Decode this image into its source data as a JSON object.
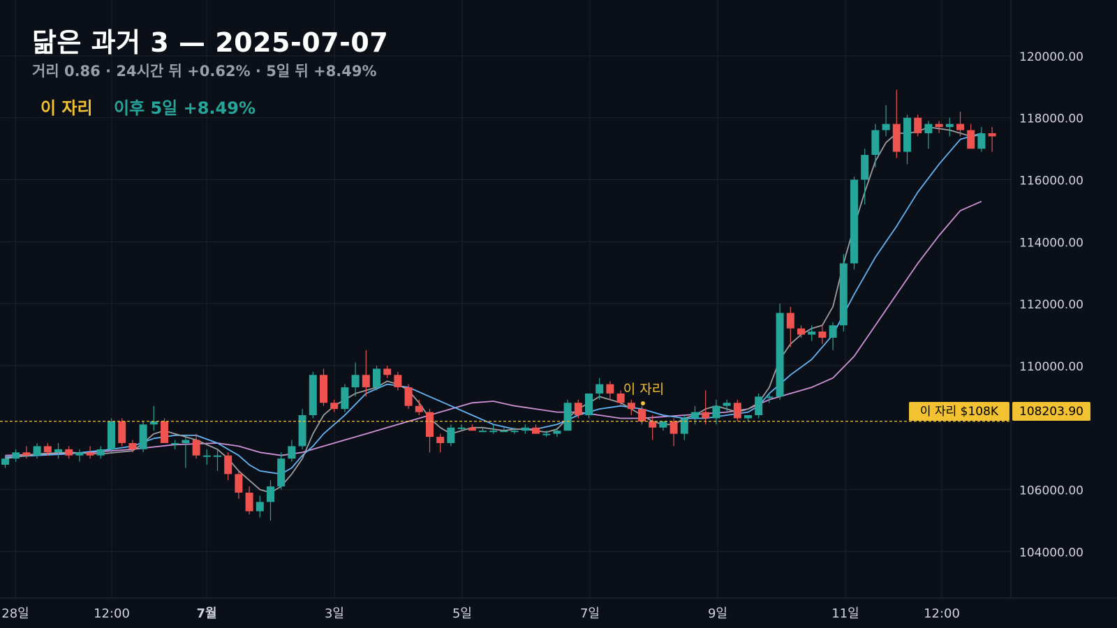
{
  "header": {
    "title": "닮은 과거 3 — 2025-07-07",
    "subtitle": "거리 0.86 · 24시간 뒤 +0.62% · 5일 뒤 +8.49%"
  },
  "legend": {
    "marker_label": "이 자리",
    "after_label": "이후 5일 +8.49%"
  },
  "chart_data": {
    "type": "candlestick",
    "y_axis": {
      "ticks": [
        "120000.00",
        "118000.00",
        "116000.00",
        "114000.00",
        "112000.00",
        "110000.00",
        "106000.00",
        "104000.00"
      ],
      "tick_values": [
        120000,
        118000,
        116000,
        114000,
        112000,
        110000,
        106000,
        104000
      ],
      "range": [
        102500,
        121800
      ]
    },
    "x_axis": {
      "ticks": [
        {
          "label": "28일",
          "bold": false
        },
        {
          "label": "12:00",
          "bold": false
        },
        {
          "label": "7월",
          "bold": true
        },
        {
          "label": "3일",
          "bold": false
        },
        {
          "label": "5일",
          "bold": false
        },
        {
          "label": "7일",
          "bold": false
        },
        {
          "label": "9일",
          "bold": false
        },
        {
          "label": "11일",
          "bold": false
        },
        {
          "label": "12:00",
          "bold": false
        }
      ]
    },
    "grid": true,
    "colors": {
      "up": "#26a69a",
      "down": "#ef5350",
      "ma_fast": "#9e9e9e",
      "ma_mid": "#64b5f6",
      "ma_slow": "#ce93d8",
      "marker": "#f2c232",
      "background": "#0b0f17"
    },
    "marker": {
      "label": "이 자리",
      "price": 108203.9,
      "price_label": "108203.90",
      "tag": "이 자리 $108K"
    },
    "candles": [
      [
        106800,
        107100,
        106700,
        107000
      ],
      [
        107000,
        107300,
        106900,
        107200
      ],
      [
        107200,
        107400,
        107000,
        107100
      ],
      [
        107100,
        107500,
        107000,
        107400
      ],
      [
        107400,
        107500,
        107100,
        107200
      ],
      [
        107200,
        107500,
        107000,
        107300
      ],
      [
        107300,
        107400,
        107000,
        107100
      ],
      [
        107100,
        107300,
        106900,
        107200
      ],
      [
        107200,
        107400,
        107000,
        107100
      ],
      [
        107100,
        107400,
        107000,
        107300
      ],
      [
        107300,
        108300,
        107200,
        108200
      ],
      [
        108200,
        108300,
        107400,
        107500
      ],
      [
        107500,
        107600,
        107200,
        107300
      ],
      [
        107300,
        108200,
        107200,
        108100
      ],
      [
        108100,
        108700,
        107900,
        108200
      ],
      [
        108200,
        108300,
        107500,
        107500
      ],
      [
        107500,
        107600,
        107300,
        107500
      ],
      [
        107500,
        107700,
        106700,
        107600
      ],
      [
        107600,
        107800,
        107000,
        107100
      ],
      [
        107100,
        107300,
        106800,
        107100
      ],
      [
        107100,
        107300,
        106600,
        107100
      ],
      [
        107100,
        107200,
        106300,
        106500
      ],
      [
        106500,
        106600,
        105700,
        105900
      ],
      [
        105900,
        106100,
        105200,
        105300
      ],
      [
        105300,
        105800,
        105100,
        105600
      ],
      [
        105600,
        106300,
        105000,
        106100
      ],
      [
        106100,
        107200,
        106000,
        107000
      ],
      [
        107000,
        107600,
        106900,
        107400
      ],
      [
        107400,
        108600,
        107300,
        108400
      ],
      [
        108400,
        109800,
        108300,
        109700
      ],
      [
        109700,
        109900,
        108700,
        108800
      ],
      [
        108800,
        108900,
        108500,
        108600
      ],
      [
        108600,
        109400,
        108500,
        109300
      ],
      [
        109300,
        110100,
        109000,
        109700
      ],
      [
        109700,
        110500,
        109000,
        109300
      ],
      [
        109300,
        110000,
        109200,
        109900
      ],
      [
        109900,
        110000,
        109600,
        109700
      ],
      [
        109700,
        109800,
        109200,
        109300
      ],
      [
        109300,
        109400,
        108600,
        108700
      ],
      [
        108700,
        108900,
        108400,
        108500
      ],
      [
        108500,
        108600,
        107200,
        107700
      ],
      [
        107700,
        107800,
        107200,
        107500
      ],
      [
        107500,
        108100,
        107400,
        108000
      ],
      [
        108000,
        108100,
        107900,
        108000
      ],
      [
        108000,
        108100,
        107900,
        107900
      ],
      [
        107900,
        108000,
        107900,
        107900
      ],
      [
        107900,
        108100,
        107800,
        107900
      ],
      [
        107900,
        108000,
        107900,
        107900
      ],
      [
        107900,
        108000,
        107800,
        107900
      ],
      [
        107900,
        108100,
        107800,
        108000
      ],
      [
        108000,
        108100,
        107800,
        107800
      ],
      [
        107800,
        107900,
        107700,
        107800
      ],
      [
        107800,
        108000,
        107700,
        107900
      ],
      [
        107900,
        108900,
        107900,
        108800
      ],
      [
        108800,
        108900,
        108300,
        108400
      ],
      [
        108400,
        109100,
        108300,
        109100
      ],
      [
        109100,
        109600,
        108900,
        109400
      ],
      [
        109400,
        109500,
        108900,
        109100
      ],
      [
        109100,
        109200,
        108700,
        108800
      ],
      [
        108800,
        108900,
        108400,
        108600
      ],
      [
        108600,
        108700,
        108100,
        108200
      ],
      [
        108200,
        108400,
        107600,
        108000
      ],
      [
        108000,
        108200,
        107900,
        108200
      ],
      [
        108200,
        108300,
        107400,
        107800
      ],
      [
        107800,
        108400,
        107600,
        108300
      ],
      [
        108300,
        108700,
        108100,
        108500
      ],
      [
        108500,
        109200,
        108100,
        108300
      ],
      [
        108300,
        108900,
        108100,
        108700
      ],
      [
        108700,
        108900,
        108500,
        108800
      ],
      [
        108800,
        108900,
        108200,
        108300
      ],
      [
        108300,
        108400,
        108200,
        108400
      ],
      [
        108400,
        109100,
        108300,
        109000
      ],
      [
        109000,
        109100,
        108800,
        109000
      ],
      [
        109000,
        112000,
        108900,
        111700
      ],
      [
        111700,
        111900,
        110600,
        111200
      ],
      [
        111200,
        111300,
        110900,
        111000
      ],
      [
        111000,
        111300,
        110800,
        111100
      ],
      [
        111100,
        111300,
        110700,
        110900
      ],
      [
        110900,
        111400,
        110500,
        111300
      ],
      [
        111300,
        113600,
        111100,
        113300
      ],
      [
        113300,
        116100,
        113100,
        116000
      ],
      [
        116000,
        117000,
        115200,
        116800
      ],
      [
        116800,
        117800,
        116400,
        117600
      ],
      [
        117600,
        118400,
        117400,
        117800
      ],
      [
        117800,
        118900,
        116700,
        116900
      ],
      [
        116900,
        118100,
        116500,
        118000
      ],
      [
        118000,
        118100,
        117400,
        117500
      ],
      [
        117500,
        117900,
        117000,
        117800
      ],
      [
        117800,
        117900,
        117500,
        117700
      ],
      [
        117700,
        118000,
        117400,
        117800
      ],
      [
        117800,
        118200,
        117400,
        117600
      ],
      [
        117600,
        117800,
        117000,
        117000
      ],
      [
        117000,
        117700,
        116900,
        117500
      ],
      [
        117500,
        117700,
        116900,
        117400
      ]
    ],
    "ma_fast": [
      [
        0,
        107000
      ],
      [
        3,
        107150
      ],
      [
        6,
        107200
      ],
      [
        9,
        107150
      ],
      [
        12,
        107250
      ],
      [
        13,
        107500
      ],
      [
        14,
        107800
      ],
      [
        15,
        107900
      ],
      [
        16,
        107800
      ],
      [
        18,
        107600
      ],
      [
        20,
        107300
      ],
      [
        21,
        107000
      ],
      [
        22,
        106600
      ],
      [
        23,
        106300
      ],
      [
        24,
        106000
      ],
      [
        25,
        105900
      ],
      [
        26,
        106100
      ],
      [
        27,
        106500
      ],
      [
        28,
        107000
      ],
      [
        29,
        107800
      ],
      [
        30,
        108400
      ],
      [
        31,
        108700
      ],
      [
        32,
        108900
      ],
      [
        33,
        109100
      ],
      [
        34,
        109200
      ],
      [
        35,
        109300
      ],
      [
        36,
        109500
      ],
      [
        37,
        109400
      ],
      [
        38,
        109200
      ],
      [
        39,
        108800
      ],
      [
        40,
        108300
      ],
      [
        41,
        108000
      ],
      [
        42,
        107800
      ],
      [
        43,
        107900
      ],
      [
        44,
        108000
      ],
      [
        45,
        108000
      ],
      [
        46,
        107950
      ],
      [
        47,
        107900
      ],
      [
        48,
        107950
      ],
      [
        49,
        107950
      ],
      [
        50,
        107900
      ],
      [
        51,
        107850
      ],
      [
        52,
        107950
      ],
      [
        53,
        108300
      ],
      [
        54,
        108600
      ],
      [
        55,
        108800
      ],
      [
        56,
        109000
      ],
      [
        57,
        108900
      ],
      [
        58,
        108800
      ],
      [
        59,
        108600
      ],
      [
        60,
        108400
      ],
      [
        61,
        108200
      ],
      [
        62,
        108100
      ],
      [
        63,
        108100
      ],
      [
        64,
        108300
      ],
      [
        65,
        108400
      ],
      [
        66,
        108600
      ],
      [
        67,
        108700
      ],
      [
        68,
        108600
      ],
      [
        69,
        108500
      ],
      [
        70,
        108600
      ],
      [
        71,
        108800
      ],
      [
        72,
        109300
      ],
      [
        73,
        110200
      ],
      [
        74,
        110700
      ],
      [
        75,
        111000
      ],
      [
        76,
        111200
      ],
      [
        77,
        111300
      ],
      [
        78,
        111900
      ],
      [
        79,
        113300
      ],
      [
        80,
        114500
      ],
      [
        81,
        115600
      ],
      [
        82,
        116600
      ],
      [
        83,
        117200
      ],
      [
        84,
        117500
      ],
      [
        85,
        117500
      ],
      [
        86,
        117550
      ],
      [
        87,
        117700
      ],
      [
        88,
        117650
      ],
      [
        89,
        117600
      ],
      [
        90,
        117500
      ],
      [
        91,
        117400
      ],
      [
        92,
        117450
      ]
    ],
    "ma_mid": [
      [
        0,
        107050
      ],
      [
        6,
        107150
      ],
      [
        10,
        107300
      ],
      [
        12,
        107400
      ],
      [
        14,
        107650
      ],
      [
        16,
        107750
      ],
      [
        18,
        107750
      ],
      [
        20,
        107500
      ],
      [
        21,
        107300
      ],
      [
        22,
        107100
      ],
      [
        23,
        106800
      ],
      [
        24,
        106600
      ],
      [
        26,
        106500
      ],
      [
        27,
        106700
      ],
      [
        28,
        107100
      ],
      [
        29,
        107400
      ],
      [
        30,
        107800
      ],
      [
        32,
        108400
      ],
      [
        34,
        109100
      ],
      [
        36,
        109400
      ],
      [
        38,
        109300
      ],
      [
        40,
        109000
      ],
      [
        42,
        108700
      ],
      [
        44,
        108400
      ],
      [
        46,
        108100
      ],
      [
        48,
        107950
      ],
      [
        50,
        107950
      ],
      [
        52,
        108100
      ],
      [
        54,
        108400
      ],
      [
        56,
        108600
      ],
      [
        58,
        108700
      ],
      [
        60,
        108600
      ],
      [
        62,
        108400
      ],
      [
        64,
        108300
      ],
      [
        66,
        108300
      ],
      [
        68,
        108400
      ],
      [
        70,
        108500
      ],
      [
        71,
        108700
      ],
      [
        72,
        109100
      ],
      [
        74,
        109700
      ],
      [
        76,
        110200
      ],
      [
        78,
        111000
      ],
      [
        80,
        112300
      ],
      [
        82,
        113500
      ],
      [
        84,
        114500
      ],
      [
        86,
        115600
      ],
      [
        88,
        116500
      ],
      [
        90,
        117300
      ],
      [
        92,
        117500
      ]
    ],
    "ma_slow": [
      [
        0,
        107100
      ],
      [
        8,
        107200
      ],
      [
        12,
        107300
      ],
      [
        16,
        107450
      ],
      [
        20,
        107500
      ],
      [
        22,
        107400
      ],
      [
        24,
        107200
      ],
      [
        26,
        107100
      ],
      [
        28,
        107200
      ],
      [
        30,
        107400
      ],
      [
        32,
        107600
      ],
      [
        34,
        107800
      ],
      [
        36,
        108000
      ],
      [
        38,
        108200
      ],
      [
        40,
        108400
      ],
      [
        42,
        108600
      ],
      [
        44,
        108800
      ],
      [
        46,
        108850
      ],
      [
        48,
        108700
      ],
      [
        50,
        108600
      ],
      [
        52,
        108500
      ],
      [
        54,
        108500
      ],
      [
        56,
        108400
      ],
      [
        58,
        108300
      ],
      [
        60,
        108300
      ],
      [
        62,
        108350
      ],
      [
        64,
        108400
      ],
      [
        66,
        108450
      ],
      [
        68,
        108500
      ],
      [
        70,
        108600
      ],
      [
        72,
        108900
      ],
      [
        74,
        109100
      ],
      [
        76,
        109300
      ],
      [
        78,
        109600
      ],
      [
        80,
        110300
      ],
      [
        82,
        111300
      ],
      [
        84,
        112300
      ],
      [
        86,
        113300
      ],
      [
        88,
        114200
      ],
      [
        90,
        115000
      ],
      [
        92,
        115300
      ]
    ]
  }
}
